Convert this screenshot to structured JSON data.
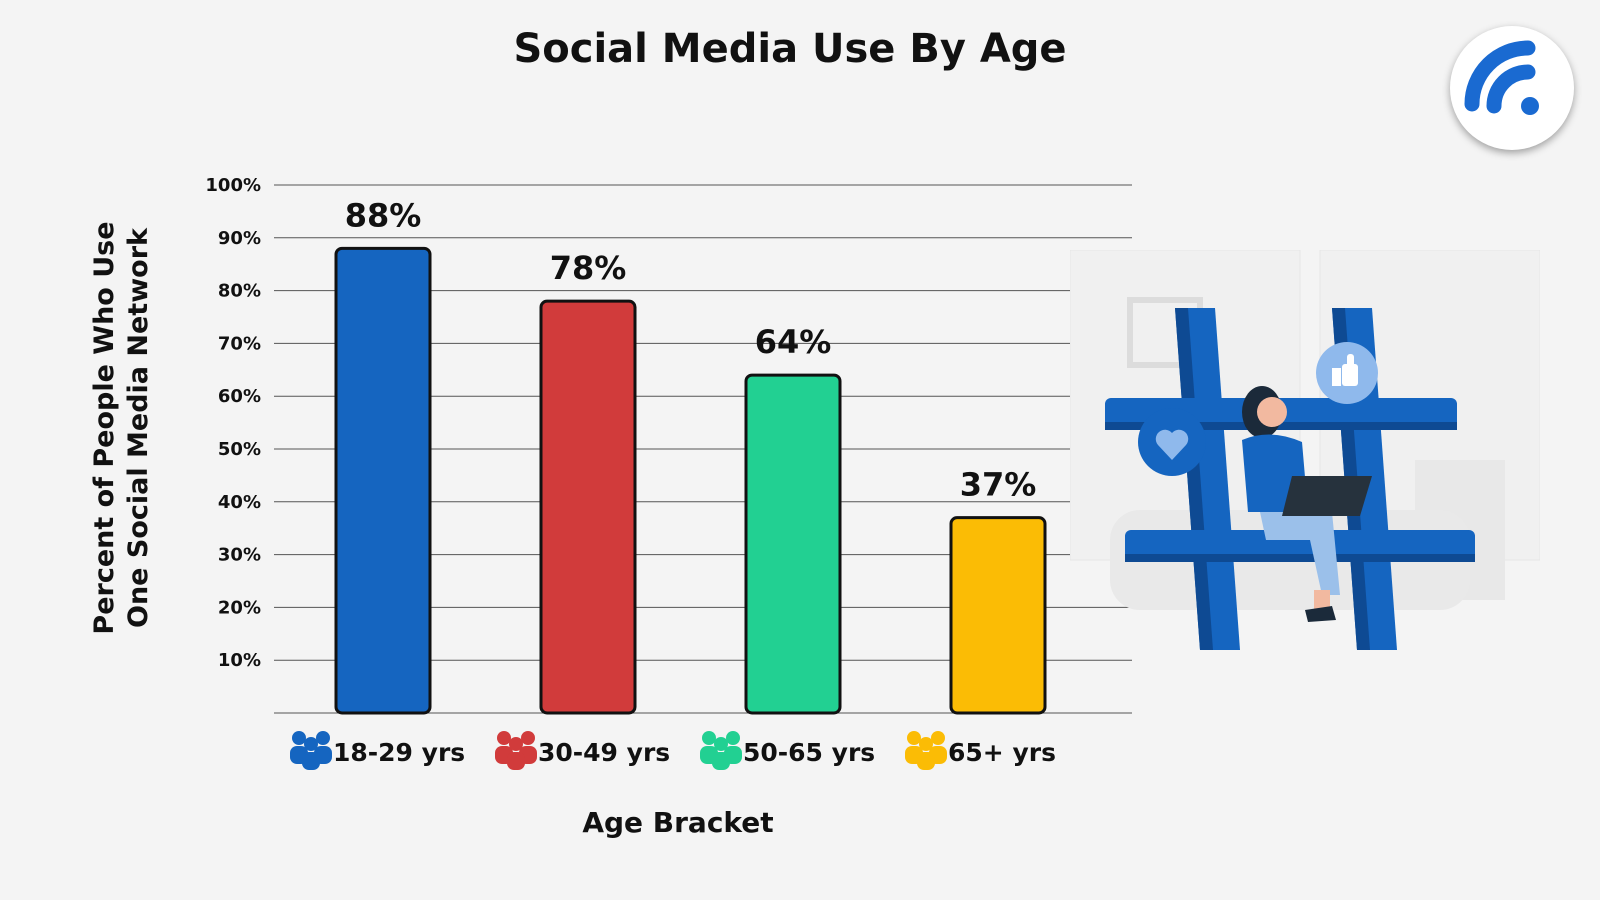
{
  "chart_data": {
    "type": "bar",
    "title": "Social Media Use By Age",
    "ylabel_lines": [
      "Percent of People Who Use",
      "One Social Media Network"
    ],
    "xlabel": "Age Bracket",
    "categories": [
      "18-29 yrs",
      "30-49 yrs",
      "50-65 yrs",
      "65+ yrs"
    ],
    "values": [
      88,
      78,
      64,
      37
    ],
    "value_labels": [
      "88%",
      "78%",
      "64%",
      "37%"
    ],
    "colors": [
      "#1565c0",
      "#d13b3b",
      "#22d092",
      "#fbbc05"
    ],
    "category_icons": [
      "group-people-icon",
      "group-people-icon",
      "group-people-icon",
      "group-people-icon"
    ],
    "y_ticks": [
      10,
      20,
      30,
      40,
      50,
      60,
      70,
      80,
      90,
      100
    ],
    "y_tick_labels": [
      "10%",
      "20%",
      "30%",
      "40%",
      "50%",
      "60%",
      "70%",
      "80%",
      "90%",
      "100%"
    ],
    "ylim": [
      0,
      100
    ],
    "grid": true
  },
  "decor": {
    "logo_icon": "wifi-signal-icon",
    "illustration": "woman-with-laptop-on-hashtag-illustration",
    "accent": "#1565c0"
  }
}
